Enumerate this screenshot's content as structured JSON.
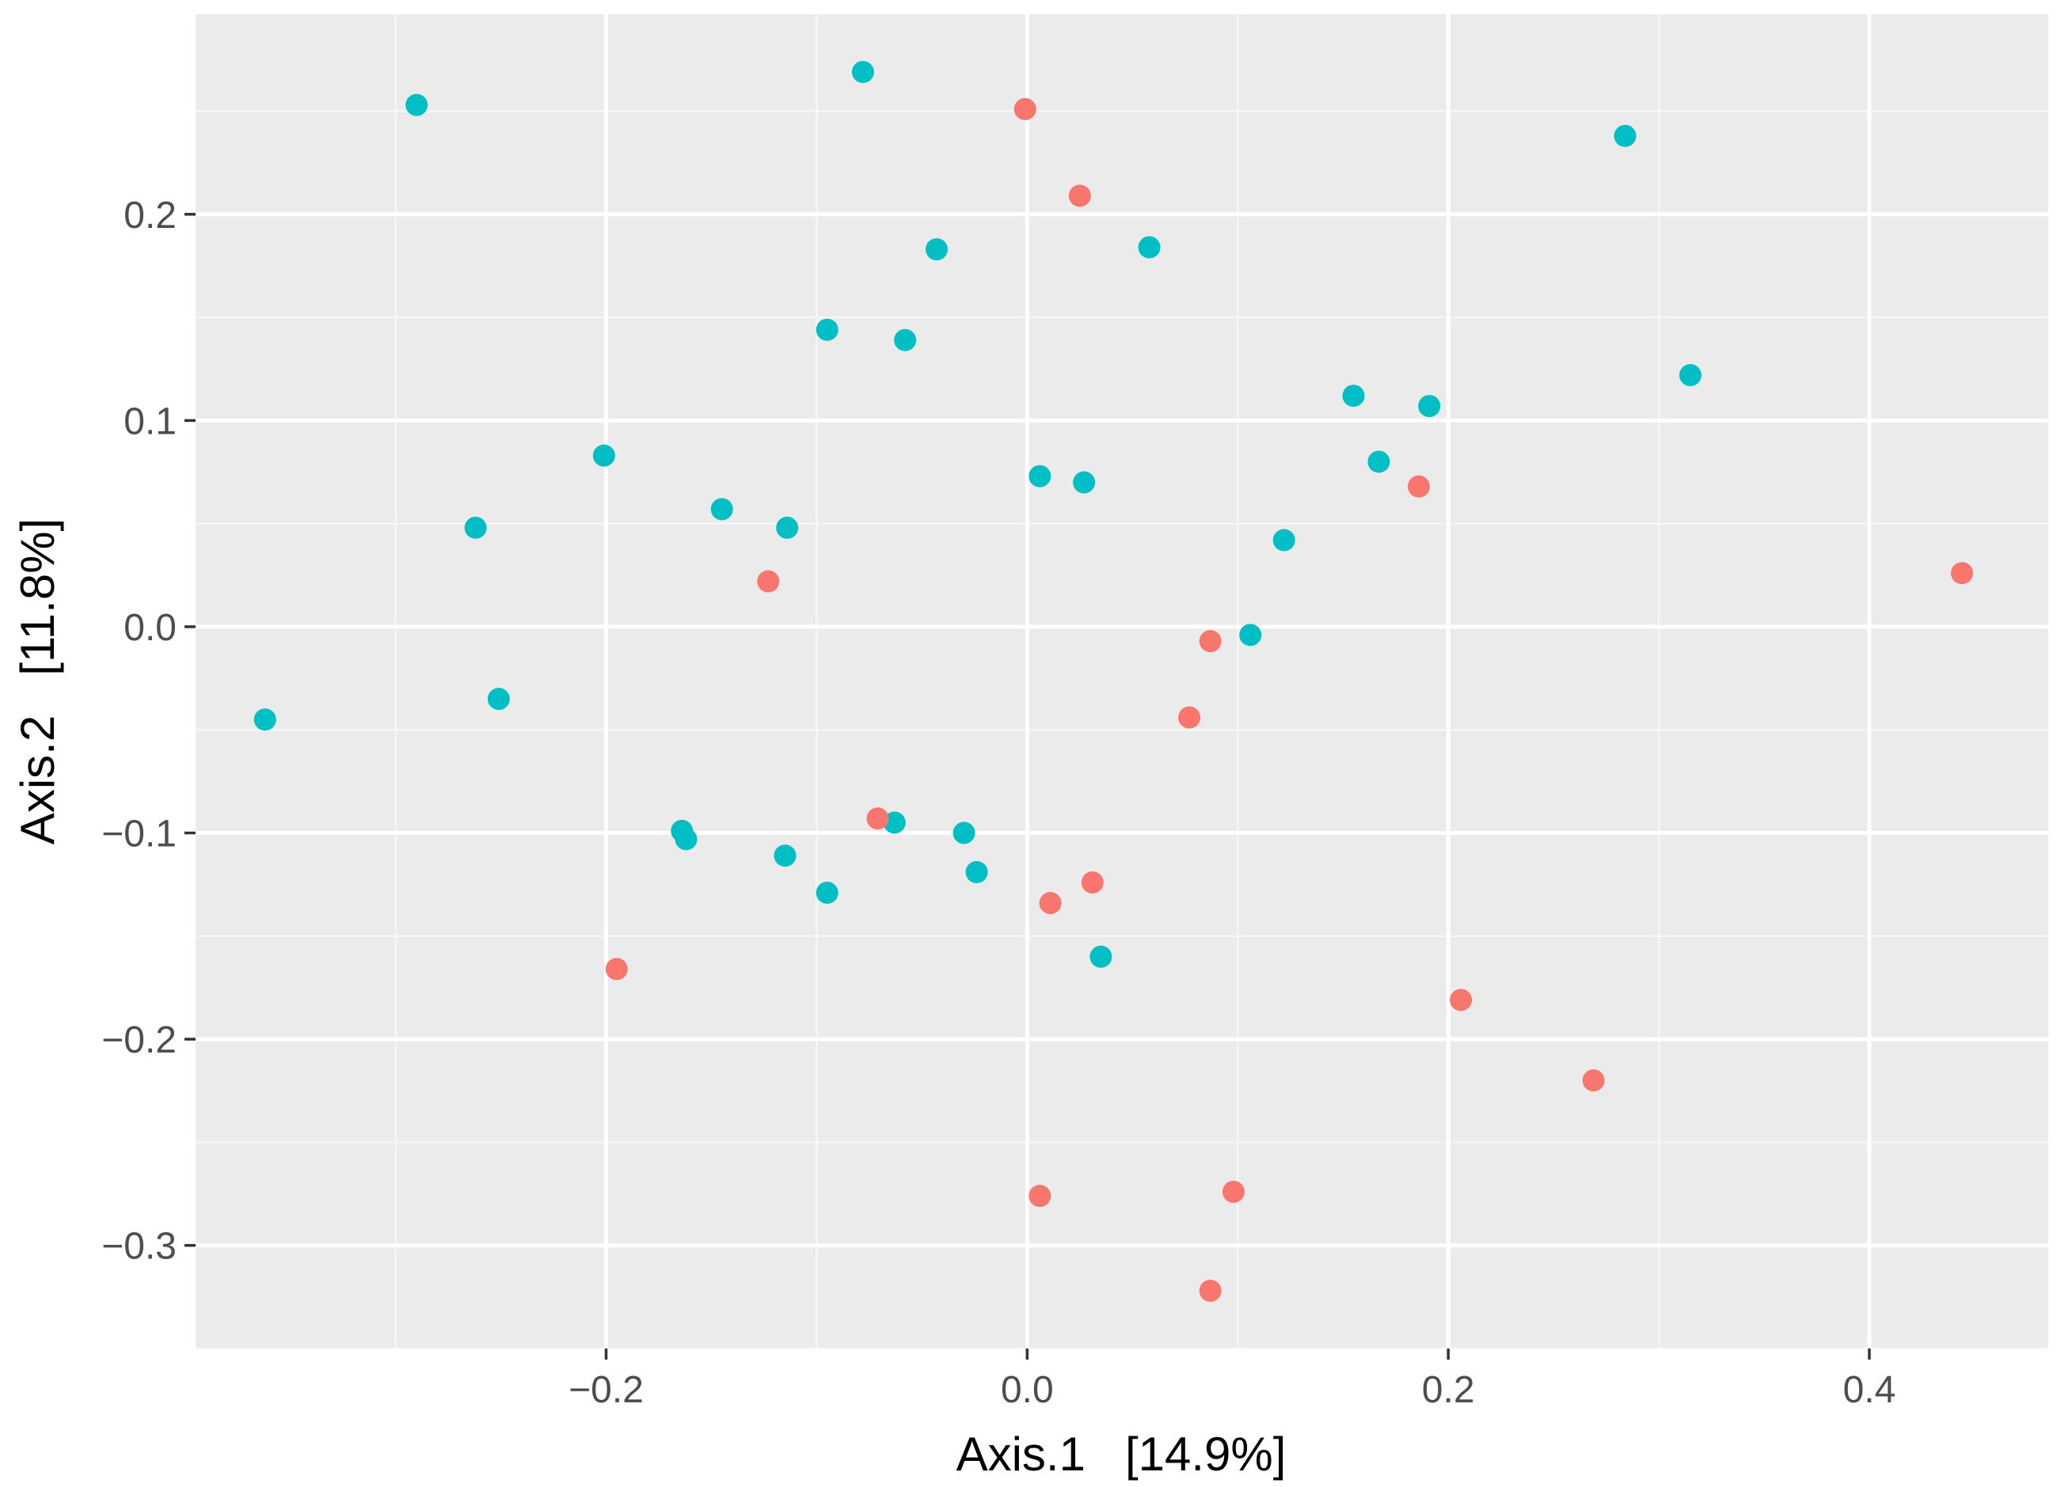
{
  "chart_data": {
    "type": "scatter",
    "title": "",
    "xlabel": "Axis.1   [14.9%]",
    "ylabel": "Axis.2   [11.8%]",
    "xlim": [
      -0.395,
      0.485
    ],
    "ylim": [
      -0.35,
      0.297
    ],
    "xticks": [
      -0.2,
      0.0,
      0.2,
      0.4
    ],
    "xtick_labels": [
      "−0.2",
      "0.0",
      "0.2",
      "0.4"
    ],
    "yticks": [
      0.2,
      0.1,
      0.0,
      -0.1,
      -0.2,
      -0.3
    ],
    "ytick_labels": [
      "0.2",
      "0.1",
      "0.0",
      "−0.1",
      "−0.2",
      "−0.3"
    ],
    "grid": true,
    "legend": "none",
    "series": [
      {
        "color": "#00BFC4",
        "points": [
          {
            "x": -0.362,
            "y": -0.045
          },
          {
            "x": -0.29,
            "y": 0.253
          },
          {
            "x": -0.262,
            "y": 0.048
          },
          {
            "x": -0.251,
            "y": -0.035
          },
          {
            "x": -0.201,
            "y": 0.083
          },
          {
            "x": -0.164,
            "y": -0.099
          },
          {
            "x": -0.162,
            "y": -0.103
          },
          {
            "x": -0.145,
            "y": 0.057
          },
          {
            "x": -0.115,
            "y": -0.111
          },
          {
            "x": -0.114,
            "y": 0.048
          },
          {
            "x": -0.095,
            "y": 0.144
          },
          {
            "x": -0.095,
            "y": -0.129
          },
          {
            "x": -0.078,
            "y": 0.269
          },
          {
            "x": -0.063,
            "y": -0.095
          },
          {
            "x": -0.058,
            "y": 0.139
          },
          {
            "x": -0.043,
            "y": 0.183
          },
          {
            "x": -0.03,
            "y": -0.1
          },
          {
            "x": -0.024,
            "y": -0.119
          },
          {
            "x": 0.006,
            "y": 0.073
          },
          {
            "x": 0.027,
            "y": 0.07
          },
          {
            "x": 0.035,
            "y": -0.16
          },
          {
            "x": 0.058,
            "y": 0.184
          },
          {
            "x": 0.106,
            "y": -0.004
          },
          {
            "x": 0.122,
            "y": 0.042
          },
          {
            "x": 0.155,
            "y": 0.112
          },
          {
            "x": 0.167,
            "y": 0.08
          },
          {
            "x": 0.191,
            "y": 0.107
          },
          {
            "x": 0.284,
            "y": 0.238
          },
          {
            "x": 0.315,
            "y": 0.122
          }
        ]
      },
      {
        "color": "#F8766D",
        "points": [
          {
            "x": -0.195,
            "y": -0.166
          },
          {
            "x": -0.123,
            "y": 0.022
          },
          {
            "x": -0.071,
            "y": -0.093
          },
          {
            "x": -0.001,
            "y": 0.251
          },
          {
            "x": 0.006,
            "y": -0.276
          },
          {
            "x": 0.011,
            "y": -0.134
          },
          {
            "x": 0.025,
            "y": 0.209
          },
          {
            "x": 0.031,
            "y": -0.124
          },
          {
            "x": 0.077,
            "y": -0.044
          },
          {
            "x": 0.087,
            "y": -0.007
          },
          {
            "x": 0.087,
            "y": -0.322
          },
          {
            "x": 0.098,
            "y": -0.274
          },
          {
            "x": 0.186,
            "y": 0.068
          },
          {
            "x": 0.206,
            "y": -0.181
          },
          {
            "x": 0.269,
            "y": -0.22
          },
          {
            "x": 0.444,
            "y": 0.026
          }
        ]
      }
    ]
  }
}
